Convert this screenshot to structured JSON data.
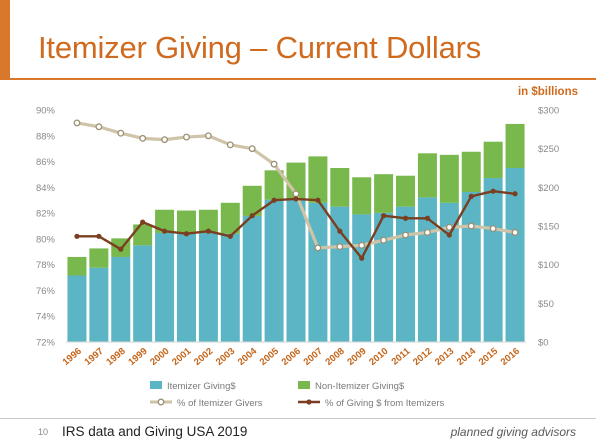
{
  "slide": {
    "title": "Itemizer Giving – Current Dollars",
    "units_label": "in $billions",
    "page_number": "10",
    "source": "IRS data and Giving USA 2019",
    "brand": "planned giving advisors"
  },
  "colors": {
    "accent": "#d9782b",
    "title": "#cf6a1e",
    "units": "#cf6a1e",
    "itemizer_bar": "#5bb5c4",
    "non_itemizer_bar": "#78b84c",
    "pct_givers_line": "#cfc3a8",
    "pct_givers_marker": "#9c8f72",
    "pct_dollars_line": "#7a3f20",
    "axis_text": "#8a8a8a",
    "year_text": "#c4651a"
  },
  "chart_data": {
    "type": "bar",
    "subtype": "stacked bar with two line series on secondary axis",
    "x": [
      "1996",
      "1997",
      "1998",
      "1999",
      "2000",
      "2001",
      "2002",
      "2003",
      "2004",
      "2005",
      "2006",
      "2007",
      "2008",
      "2009",
      "2010",
      "2011",
      "2012",
      "2013",
      "2014",
      "2015",
      "2016"
    ],
    "bar_axis": {
      "ticks": [
        "$0",
        "$50",
        "$100",
        "$150",
        "$200",
        "$250",
        "$300"
      ],
      "range": [
        0,
        300
      ]
    },
    "pct_axis": {
      "ticks": [
        "72%",
        "74%",
        "76%",
        "78%",
        "80%",
        "82%",
        "84%",
        "86%",
        "88%",
        "90%"
      ],
      "range": [
        72,
        90
      ]
    },
    "series": [
      {
        "name": "Itemizer Giving$",
        "kind": "bar",
        "axis": "bar",
        "values": [
          86,
          96,
          110,
          125,
          141,
          141,
          141,
          140,
          163,
          184,
          186,
          180,
          175,
          165,
          167,
          175,
          187,
          180,
          194,
          212,
          225
        ]
      },
      {
        "name": "Non-Itemizer Giving$",
        "kind": "bar",
        "axis": "bar",
        "values": [
          24,
          25,
          24,
          27,
          30,
          29,
          30,
          40,
          39,
          38,
          46,
          60,
          50,
          48,
          50,
          40,
          57,
          62,
          52,
          47,
          57
        ]
      },
      {
        "name": "% of Itemizer Givers",
        "kind": "line",
        "axis": "pct",
        "values": [
          89.0,
          88.7,
          88.2,
          87.8,
          87.7,
          87.9,
          88.0,
          87.3,
          87.0,
          85.8,
          83.5,
          79.3,
          79.4,
          79.5,
          79.9,
          80.3,
          80.5,
          80.9,
          81.0,
          80.8,
          80.5
        ]
      },
      {
        "name": "% of Giving $ from Itemizers",
        "kind": "line",
        "axis": "pct",
        "values": [
          80.2,
          80.2,
          79.2,
          81.3,
          80.6,
          80.4,
          80.6,
          80.2,
          81.8,
          83.0,
          83.1,
          83.0,
          80.6,
          78.5,
          81.8,
          81.6,
          81.6,
          80.3,
          83.3,
          83.7,
          83.5
        ]
      }
    ]
  }
}
